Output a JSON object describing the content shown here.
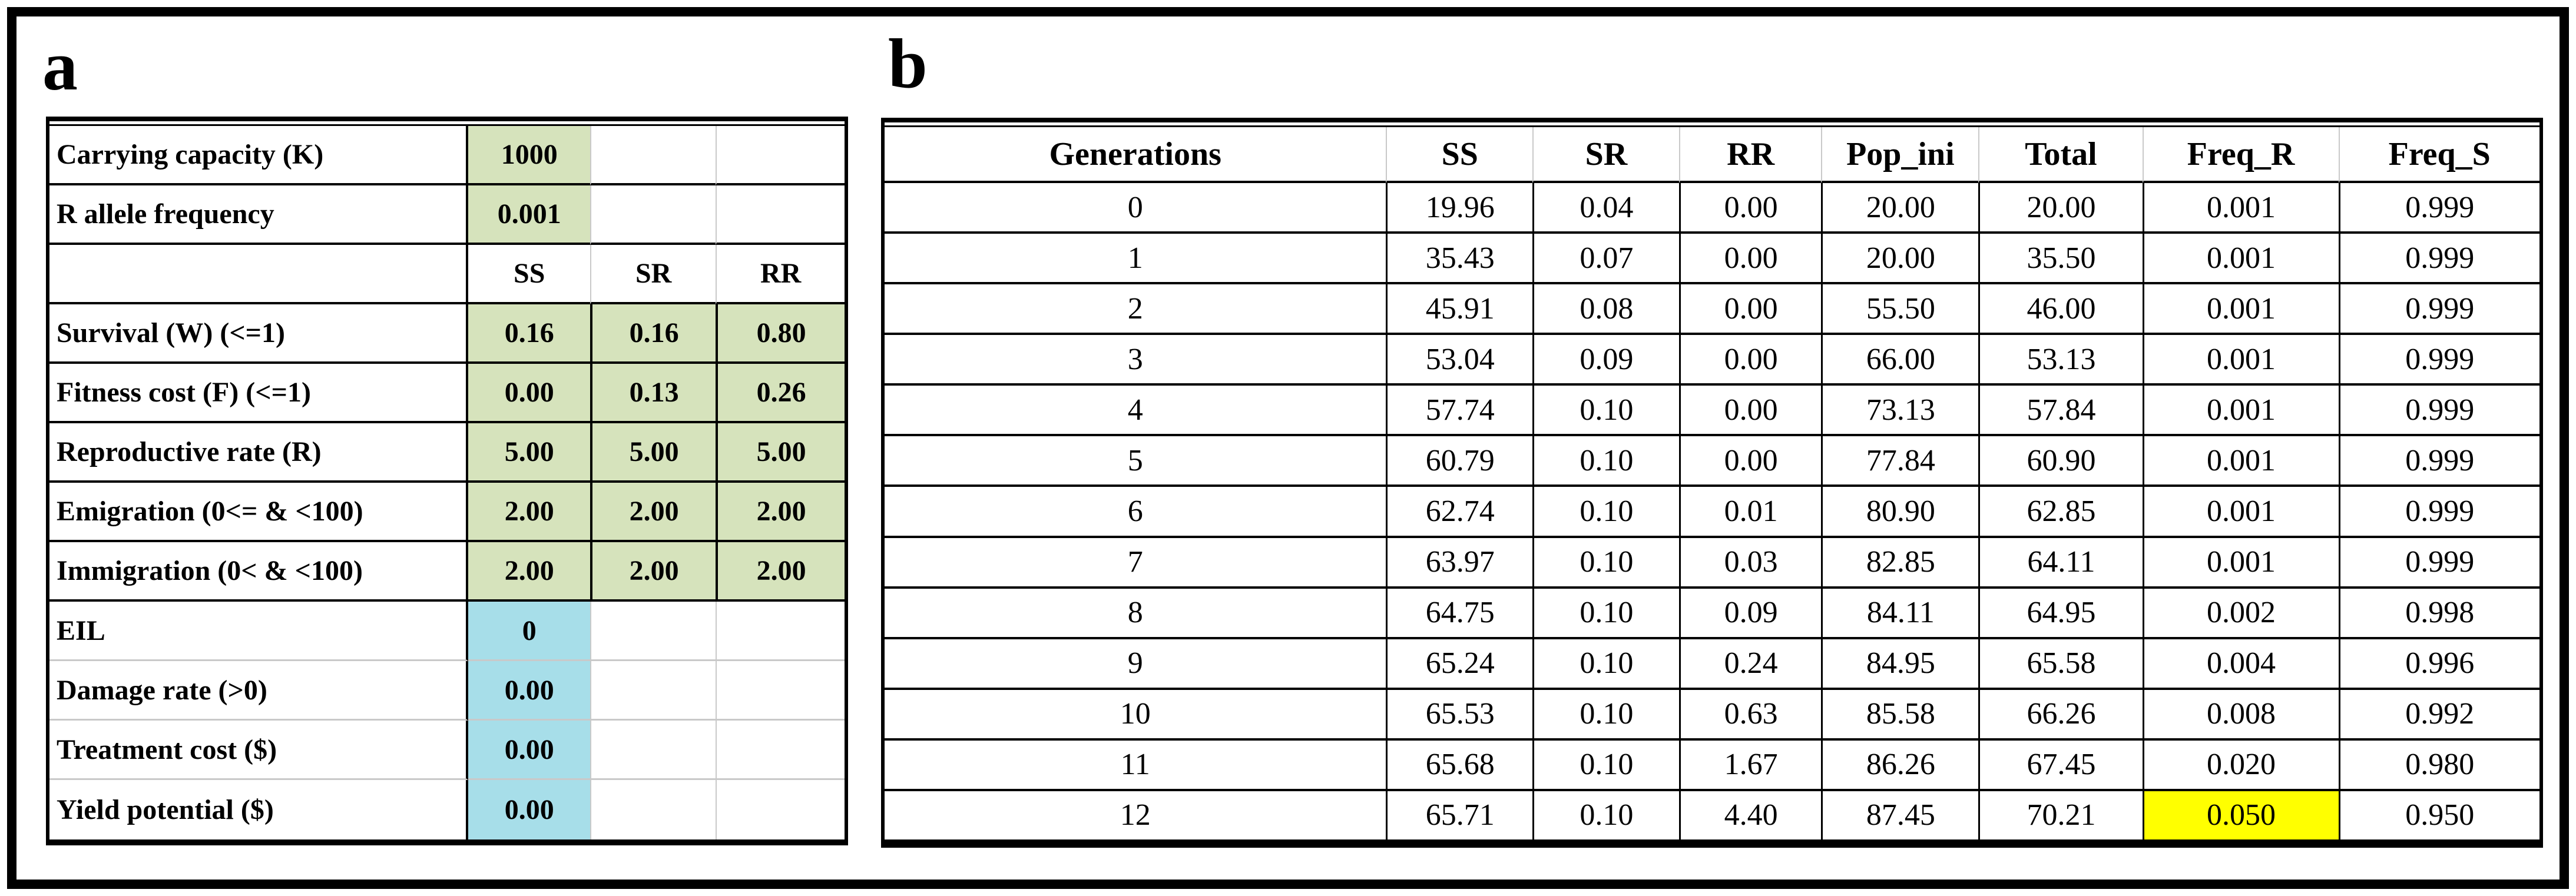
{
  "figure": {
    "panel_a_label": "a",
    "panel_b_label": "b"
  },
  "colors": {
    "green_input_fill": "#d6e3bc",
    "blue_input_fill": "#a7dee9",
    "yellow_highlight": "#ffff00",
    "grid_gray": "#c9c9c9"
  },
  "panel_a": {
    "rows": [
      {
        "kind": "top",
        "label": "Carrying capacity (K)",
        "values": [
          "1000",
          "",
          ""
        ]
      },
      {
        "kind": "top",
        "label": "R allele frequency",
        "values": [
          "0.001",
          "",
          ""
        ]
      },
      {
        "kind": "colhead",
        "label": "",
        "values": [
          "SS",
          "SR",
          "RR"
        ]
      },
      {
        "kind": "green",
        "label": "Survival (W) (<=1)",
        "values": [
          "0.16",
          "0.16",
          "0.80"
        ]
      },
      {
        "kind": "green",
        "label": "Fitness cost (F) (<=1)",
        "values": [
          "0.00",
          "0.13",
          "0.26"
        ]
      },
      {
        "kind": "green",
        "label": "Reproductive rate (R)",
        "values": [
          "5.00",
          "5.00",
          "5.00"
        ]
      },
      {
        "kind": "green",
        "label": "Emigration (0<= & <100)",
        "values": [
          "2.00",
          "2.00",
          "2.00"
        ]
      },
      {
        "kind": "green",
        "label": "Immigration (0< & <100)",
        "values": [
          "2.00",
          "2.00",
          "2.00"
        ]
      },
      {
        "kind": "blue",
        "label": "EIL",
        "values": [
          "0",
          "",
          ""
        ]
      },
      {
        "kind": "blue",
        "label": "Damage rate (>0)",
        "values": [
          "0.00",
          "",
          ""
        ]
      },
      {
        "kind": "blue",
        "label": "Treatment cost ($)",
        "values": [
          "0.00",
          "",
          ""
        ]
      },
      {
        "kind": "blue",
        "label": "Yield potential ($)",
        "values": [
          "0.00",
          "",
          ""
        ]
      }
    ]
  },
  "panel_b": {
    "headers": [
      "Generations",
      "SS",
      "SR",
      "RR",
      "Pop_ini",
      "Total",
      "Freq_R",
      "Freq_S"
    ],
    "rows": [
      [
        "0",
        "19.96",
        "0.04",
        "0.00",
        "20.00",
        "20.00",
        "0.001",
        "0.999"
      ],
      [
        "1",
        "35.43",
        "0.07",
        "0.00",
        "20.00",
        "35.50",
        "0.001",
        "0.999"
      ],
      [
        "2",
        "45.91",
        "0.08",
        "0.00",
        "55.50",
        "46.00",
        "0.001",
        "0.999"
      ],
      [
        "3",
        "53.04",
        "0.09",
        "0.00",
        "66.00",
        "53.13",
        "0.001",
        "0.999"
      ],
      [
        "4",
        "57.74",
        "0.10",
        "0.00",
        "73.13",
        "57.84",
        "0.001",
        "0.999"
      ],
      [
        "5",
        "60.79",
        "0.10",
        "0.00",
        "77.84",
        "60.90",
        "0.001",
        "0.999"
      ],
      [
        "6",
        "62.74",
        "0.10",
        "0.01",
        "80.90",
        "62.85",
        "0.001",
        "0.999"
      ],
      [
        "7",
        "63.97",
        "0.10",
        "0.03",
        "82.85",
        "64.11",
        "0.001",
        "0.999"
      ],
      [
        "8",
        "64.75",
        "0.10",
        "0.09",
        "84.11",
        "64.95",
        "0.002",
        "0.998"
      ],
      [
        "9",
        "65.24",
        "0.10",
        "0.24",
        "84.95",
        "65.58",
        "0.004",
        "0.996"
      ],
      [
        "10",
        "65.53",
        "0.10",
        "0.63",
        "85.58",
        "66.26",
        "0.008",
        "0.992"
      ],
      [
        "11",
        "65.68",
        "0.10",
        "1.67",
        "86.26",
        "67.45",
        "0.020",
        "0.980"
      ],
      [
        "12",
        "65.71",
        "0.10",
        "4.40",
        "87.45",
        "70.21",
        "0.050",
        "0.950"
      ]
    ],
    "highlight": {
      "row_index": 12,
      "col_index": 6,
      "color": "yellow_highlight"
    }
  }
}
